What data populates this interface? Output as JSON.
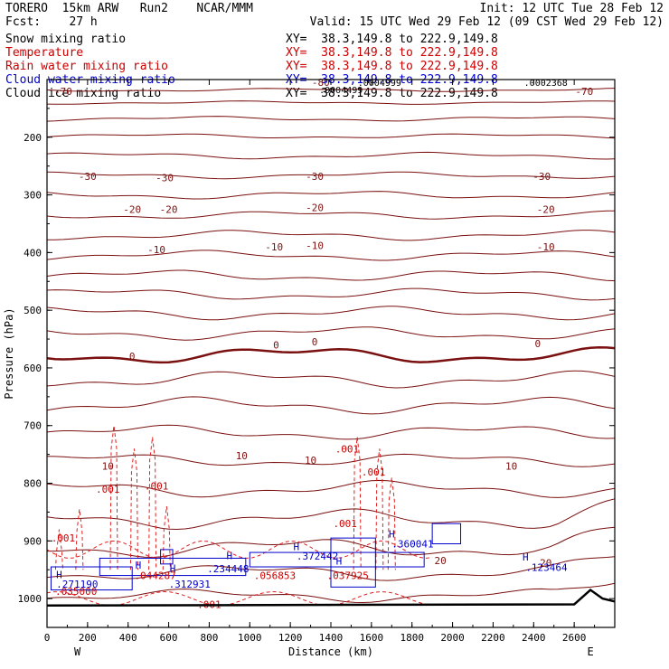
{
  "header": {
    "model": "TORERO  15km ARW   Run2    NCAR/MMM",
    "fcst": "Fcst:    27 h",
    "init": "Init: 12 UTC Tue 28 Feb 12",
    "valid": "Valid: 15 UTC Wed 29 Feb 12 (09 CST Wed 29 Feb 12)",
    "fields": [
      {
        "name": "Snow mixing ratio",
        "xy": "XY=  38.3,149.8 to 222.9,149.8",
        "color": "#000000"
      },
      {
        "name": "Temperature",
        "xy": "XY=  38.3,149.8 to 222.9,149.8",
        "color": "#cc0000"
      },
      {
        "name": "Rain water mixing ratio",
        "xy": "XY=  38.3,149.8 to 222.9,149.8",
        "color": "#cc0000"
      },
      {
        "name": "Cloud water mixing ratio",
        "xy": "XY=  38.3,149.8 to 222.9,149.8",
        "color": "#0000cc"
      },
      {
        "name": "Cloud ice mixing ratio",
        "xy": "XY=  38.3,149.8 to 222.9,149.8",
        "color": "#000000"
      }
    ]
  },
  "colors": {
    "temperature": "#7a1010",
    "rain": "#e02020",
    "cloud_water": "#0000cc",
    "axis": "#000000",
    "rain_label": "#cc0000"
  },
  "chart_data": {
    "type": "contour-cross-section",
    "xlabel": "Distance (km)",
    "ylabel": "Pressure (hPa)",
    "xlim": [
      0,
      2800
    ],
    "ylim": [
      1050,
      100
    ],
    "x_ticks": [
      0,
      200,
      400,
      600,
      800,
      1000,
      1200,
      1400,
      1600,
      1800,
      2000,
      2200,
      2400,
      2600
    ],
    "y_ticks": [
      200,
      300,
      400,
      500,
      600,
      700,
      800,
      900,
      1000
    ],
    "endpoints": {
      "left": "W",
      "right": "E"
    },
    "temperature_contours": [
      {
        "p0": 118,
        "amp": 2,
        "w": 1
      },
      {
        "p0": 140,
        "amp": 2,
        "w": 1
      },
      {
        "p0": 168,
        "amp": 3,
        "w": 1
      },
      {
        "p0": 198,
        "amp": 3,
        "w": 1
      },
      {
        "p0": 232,
        "amp": 4,
        "w": 1
      },
      {
        "p0": 266,
        "amp": 4,
        "w": 1
      },
      {
        "p0": 300,
        "amp": 5,
        "w": 1
      },
      {
        "p0": 335,
        "amp": 5,
        "w": 1
      },
      {
        "p0": 370,
        "amp": 6,
        "w": 1
      },
      {
        "p0": 405,
        "amp": 6,
        "w": 1
      },
      {
        "p0": 440,
        "amp": 7,
        "w": 1
      },
      {
        "p0": 472,
        "amp": 7,
        "w": 1
      },
      {
        "p0": 505,
        "amp": 8,
        "w": 1
      },
      {
        "p0": 540,
        "amp": 8,
        "w": 1
      },
      {
        "p0": 578,
        "amp": 10,
        "w": 2.5
      },
      {
        "p0": 620,
        "amp": 10,
        "w": 1
      },
      {
        "p0": 665,
        "amp": 10,
        "w": 1
      },
      {
        "p0": 712,
        "amp": 9,
        "w": 1
      },
      {
        "p0": 760,
        "amp": 8,
        "w": 1
      },
      {
        "p0": 810,
        "amp": 10,
        "w": 1
      },
      {
        "p0": 862,
        "amp": 12,
        "w": 1
      },
      {
        "p0": 912,
        "amp": 12,
        "w": 1
      },
      {
        "p0": 955,
        "amp": 10,
        "w": 1
      },
      {
        "p0": 995,
        "amp": 8,
        "w": 1
      }
    ],
    "temperature_labels": [
      {
        "x": 80,
        "p": 120,
        "text": "-70"
      },
      {
        "x": 2650,
        "p": 120,
        "text": "-70"
      },
      {
        "x": 1350,
        "p": 105,
        "text": "-80"
      },
      {
        "x": 200,
        "p": 268,
        "text": "-30"
      },
      {
        "x": 580,
        "p": 270,
        "text": "-30"
      },
      {
        "x": 1320,
        "p": 268,
        "text": "-30"
      },
      {
        "x": 2440,
        "p": 268,
        "text": "-30"
      },
      {
        "x": 420,
        "p": 325,
        "text": "-20"
      },
      {
        "x": 600,
        "p": 325,
        "text": "-20"
      },
      {
        "x": 1320,
        "p": 322,
        "text": "-20"
      },
      {
        "x": 2460,
        "p": 325,
        "text": "-20"
      },
      {
        "x": 540,
        "p": 395,
        "text": "-10"
      },
      {
        "x": 1120,
        "p": 390,
        "text": "-10"
      },
      {
        "x": 1320,
        "p": 388,
        "text": "-10"
      },
      {
        "x": 2460,
        "p": 390,
        "text": "-10"
      },
      {
        "x": 420,
        "p": 580,
        "text": "0"
      },
      {
        "x": 1130,
        "p": 560,
        "text": "0"
      },
      {
        "x": 1320,
        "p": 555,
        "text": "0"
      },
      {
        "x": 2420,
        "p": 558,
        "text": "0"
      },
      {
        "x": 300,
        "p": 770,
        "text": "10"
      },
      {
        "x": 960,
        "p": 752,
        "text": "10"
      },
      {
        "x": 1300,
        "p": 760,
        "text": "10"
      },
      {
        "x": 2290,
        "p": 770,
        "text": "10"
      },
      {
        "x": 1940,
        "p": 934,
        "text": "20"
      },
      {
        "x": 2460,
        "p": 938,
        "text": "20"
      }
    ],
    "rain_contour_label": ".001",
    "rain_cells": [
      {
        "x": 60,
        "top": 880
      },
      {
        "x": 160,
        "top": 845
      },
      {
        "x": 330,
        "top": 700
      },
      {
        "x": 430,
        "top": 740
      },
      {
        "x": 520,
        "top": 720
      },
      {
        "x": 590,
        "top": 840
      },
      {
        "x": 1530,
        "top": 720
      },
      {
        "x": 1640,
        "top": 740
      },
      {
        "x": 1700,
        "top": 790
      }
    ],
    "rain_labels": [
      {
        "x": 80,
        "p": 895,
        "text": ".001"
      },
      {
        "x": 300,
        "p": 810,
        "text": ".001"
      },
      {
        "x": 540,
        "p": 805,
        "text": ".001"
      },
      {
        "x": 1480,
        "p": 740,
        "text": ".001"
      },
      {
        "x": 1610,
        "p": 780,
        "text": ".001"
      },
      {
        "x": 1470,
        "p": 870,
        "text": ".001"
      },
      {
        "x": 800,
        "p": 1010,
        "text": ".001"
      }
    ],
    "rain_max_labels": [
      {
        "x": 40,
        "p": 987,
        "text": ".035000"
      },
      {
        "x": 430,
        "p": 960,
        "text": ".044287"
      },
      {
        "x": 1020,
        "p": 960,
        "text": ".056853"
      },
      {
        "x": 1380,
        "p": 960,
        "text": ".037925"
      }
    ],
    "cloud_max_labels": [
      {
        "x": 45,
        "p": 975,
        "text": ".271190"
      },
      {
        "x": 600,
        "p": 975,
        "text": ".312931"
      },
      {
        "x": 790,
        "p": 948,
        "text": ".234448"
      },
      {
        "x": 1230,
        "p": 926,
        "text": ".372442"
      },
      {
        "x": 1700,
        "p": 905,
        "text": ".360041"
      },
      {
        "x": 2360,
        "p": 946,
        "text": ".123464"
      }
    ],
    "h_markers": [
      {
        "x": 60,
        "p": 958
      },
      {
        "x": 450,
        "p": 942
      },
      {
        "x": 620,
        "p": 947
      },
      {
        "x": 900,
        "p": 925
      },
      {
        "x": 1230,
        "p": 910
      },
      {
        "x": 1440,
        "p": 935
      },
      {
        "x": 1700,
        "p": 888
      },
      {
        "x": 2360,
        "p": 928
      }
    ],
    "snow_labels": [
      {
        "x": 1640,
        "p": 105,
        "text": ".0004999"
      },
      {
        "x": 2460,
        "p": 105,
        "text": ".0002368"
      },
      {
        "x": 1450,
        "p": 117,
        "text": ".0004499"
      }
    ]
  }
}
